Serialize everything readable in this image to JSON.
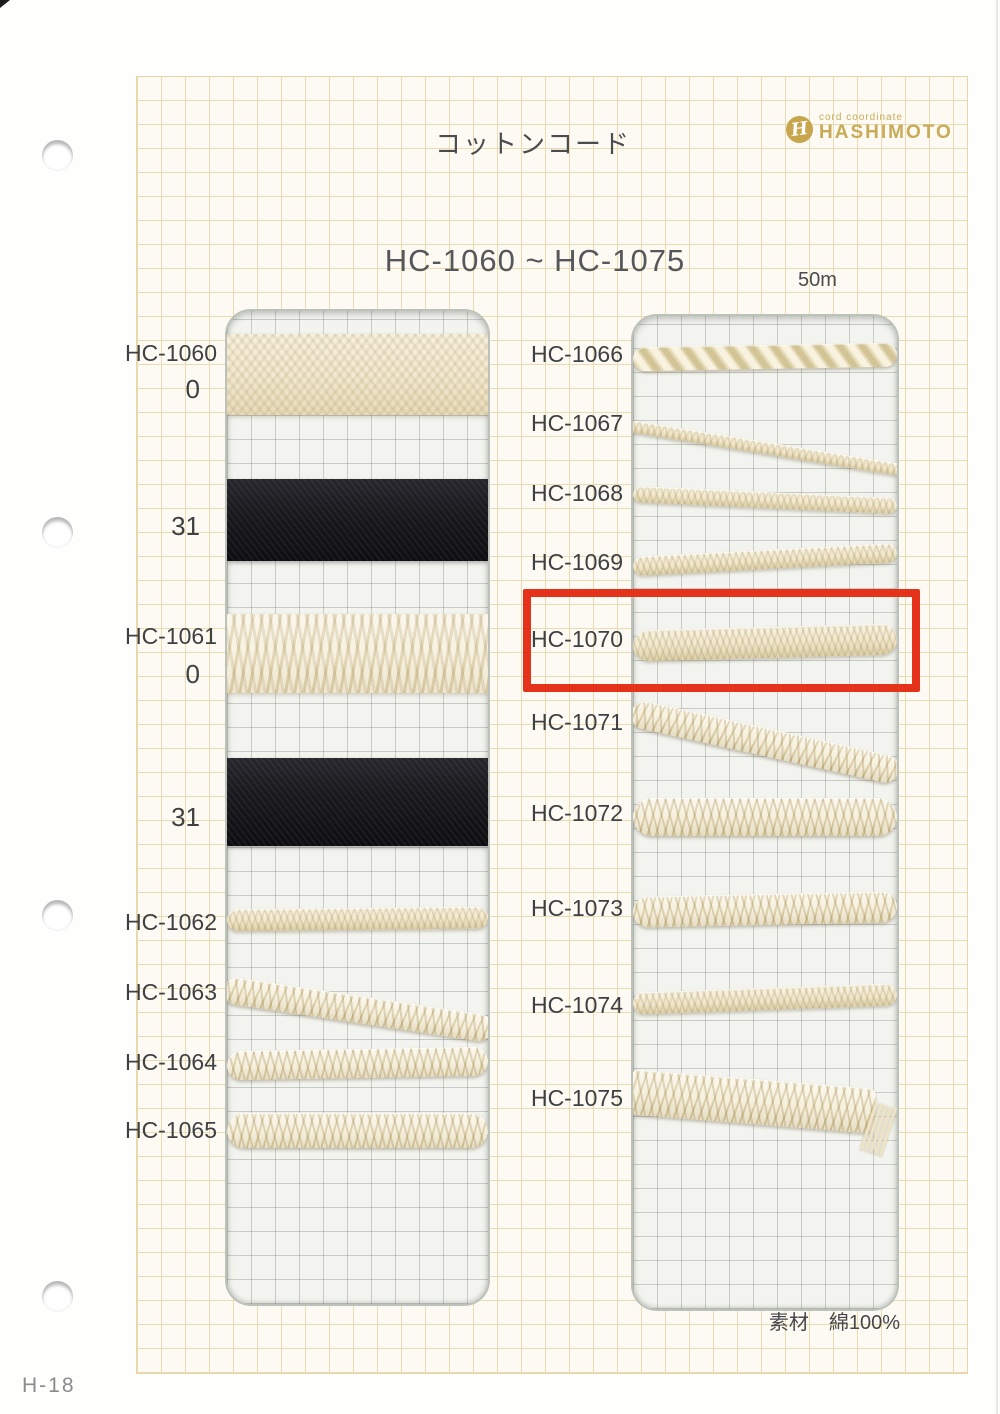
{
  "page": {
    "title": "コットンコード",
    "range_heading": "HC-1060 ~ HC-1075",
    "length_label": "50m",
    "material_label": "素材　綿100%",
    "page_code": "H-18"
  },
  "logo": {
    "monogram": "H",
    "tagline": "cord coordinate",
    "name": "HASHIMOTO",
    "brand_color": "#c7a64e"
  },
  "samples": {
    "left": [
      "HC-1060",
      "0",
      "31",
      "HC-1061",
      "0",
      "31",
      "HC-1062",
      "HC-1063",
      "HC-1064",
      "HC-1065"
    ],
    "right": [
      "HC-1066",
      "HC-1067",
      "HC-1068",
      "HC-1069",
      "HC-1070",
      "HC-1071",
      "HC-1072",
      "HC-1073",
      "HC-1074",
      "HC-1075"
    ]
  },
  "highlight": {
    "highlighted_code": "HC-1070",
    "color": "#e5331b"
  }
}
